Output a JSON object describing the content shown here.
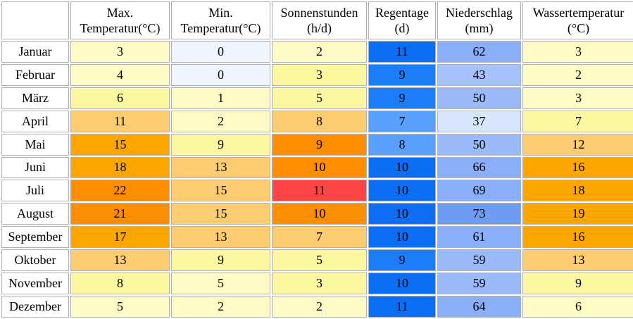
{
  "chart_data": {
    "type": "table",
    "columns": [
      {
        "key": "max",
        "line1": "Max.",
        "line2": "Temperatur(°C)"
      },
      {
        "key": "min",
        "line1": "Min.",
        "line2": "Temperatur(°C)"
      },
      {
        "key": "sun",
        "line1": "Sonnenstunden",
        "line2": "(h/d)"
      },
      {
        "key": "rain_days",
        "line1": "Regentage",
        "line2": "(d)"
      },
      {
        "key": "precip",
        "line1": "Niederschlag",
        "line2": "(mm)"
      },
      {
        "key": "water",
        "line1": "Wassertemperatur",
        "line2": "(°C)"
      }
    ],
    "rows": [
      {
        "month": "Januar",
        "values": [
          "3",
          "0",
          "2",
          "11",
          "62",
          "3"
        ],
        "colors": [
          "#fefbc5",
          "#eef5fe",
          "#fefbc5",
          "#0b6ef5",
          "#8aaff8",
          "#fefbc5"
        ]
      },
      {
        "month": "Februar",
        "values": [
          "4",
          "0",
          "3",
          "9",
          "43",
          "2"
        ],
        "colors": [
          "#fefbc5",
          "#eef5fe",
          "#fdf7a2",
          "#1b7df7",
          "#a7c2fb",
          "#fefbc5"
        ]
      },
      {
        "month": "März",
        "values": [
          "6",
          "1",
          "5",
          "9",
          "50",
          "3"
        ],
        "colors": [
          "#fdf7a2",
          "#fefbc5",
          "#fdf7a2",
          "#1b7df7",
          "#9bbaf9",
          "#fefbc5"
        ]
      },
      {
        "month": "April",
        "values": [
          "11",
          "2",
          "8",
          "7",
          "37",
          "7"
        ],
        "colors": [
          "#fdcb70",
          "#fefbc5",
          "#fdcb70",
          "#58a0fb",
          "#d5e6fd",
          "#fdf7a2"
        ]
      },
      {
        "month": "Mai",
        "values": [
          "15",
          "9",
          "9",
          "8",
          "50",
          "12"
        ],
        "colors": [
          "#fea600",
          "#fdf7a2",
          "#fe8e00",
          "#58a0fb",
          "#9bbaf9",
          "#fdcb70"
        ]
      },
      {
        "month": "Juni",
        "values": [
          "18",
          "13",
          "10",
          "10",
          "66",
          "16"
        ],
        "colors": [
          "#fea600",
          "#fdcb70",
          "#fe8e00",
          "#0b6ef5",
          "#8aaff8",
          "#fea600"
        ]
      },
      {
        "month": "Juli",
        "values": [
          "22",
          "15",
          "11",
          "10",
          "69",
          "18"
        ],
        "colors": [
          "#fe8e00",
          "#fdcb70",
          "#fe4444",
          "#0b6ef5",
          "#8aaff8",
          "#fea600"
        ]
      },
      {
        "month": "August",
        "values": [
          "21",
          "15",
          "10",
          "10",
          "73",
          "19"
        ],
        "colors": [
          "#fe8e00",
          "#fdcb70",
          "#fe8e00",
          "#0b6ef5",
          "#6e9cf3",
          "#fea600"
        ]
      },
      {
        "month": "September",
        "values": [
          "17",
          "13",
          "7",
          "10",
          "61",
          "16"
        ],
        "colors": [
          "#fea600",
          "#fdcb70",
          "#fdcb70",
          "#0b6ef5",
          "#8aaff8",
          "#fea600"
        ]
      },
      {
        "month": "Oktober",
        "values": [
          "13",
          "9",
          "5",
          "9",
          "59",
          "13"
        ],
        "colors": [
          "#fdcb70",
          "#fdf7a2",
          "#fdf7a2",
          "#1b7df7",
          "#9bbaf9",
          "#fdcb70"
        ]
      },
      {
        "month": "November",
        "values": [
          "8",
          "5",
          "3",
          "10",
          "59",
          "9"
        ],
        "colors": [
          "#fdf7a2",
          "#fefbc5",
          "#fdf7a2",
          "#0b6ef5",
          "#9bbaf9",
          "#fdf7a2"
        ]
      },
      {
        "month": "Dezember",
        "values": [
          "5",
          "2",
          "2",
          "11",
          "64",
          "6"
        ],
        "colors": [
          "#fefbc5",
          "#fefbc5",
          "#fefbc5",
          "#0b6ef5",
          "#8aaff8",
          "#fefbc5"
        ]
      }
    ]
  }
}
